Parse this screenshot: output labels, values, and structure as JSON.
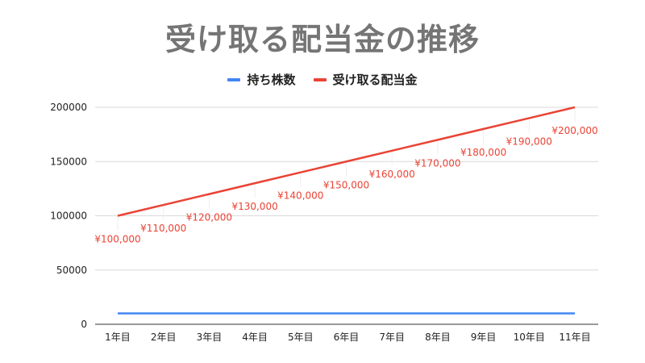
{
  "chart_data": {
    "type": "line",
    "title": "受け取る配当金の推移",
    "categories": [
      "1年目",
      "2年目",
      "3年目",
      "4年目",
      "5年目",
      "6年目",
      "7年目",
      "8年目",
      "9年目",
      "10年目",
      "11年目"
    ],
    "series": [
      {
        "name": "持ち株数",
        "color": "#4285f4",
        "values": [
          10000,
          10000,
          10000,
          10000,
          10000,
          10000,
          10000,
          10000,
          10000,
          10000,
          10000
        ]
      },
      {
        "name": "受け取る配当金",
        "color": "#ea4335",
        "values": [
          100000,
          110000,
          120000,
          130000,
          140000,
          150000,
          160000,
          170000,
          180000,
          190000,
          200000
        ],
        "data_labels": [
          "¥100,000",
          "¥110,000",
          "¥120,000",
          "¥130,000",
          "¥140,000",
          "¥150,000",
          "¥160,000",
          "¥170,000",
          "¥180,000",
          "¥190,000",
          "¥200,000"
        ]
      }
    ],
    "yticks": [
      "0",
      "50000",
      "100000",
      "150000",
      "200000"
    ],
    "ylim": [
      0,
      200000
    ],
    "grid": true,
    "legend_position": "top"
  }
}
